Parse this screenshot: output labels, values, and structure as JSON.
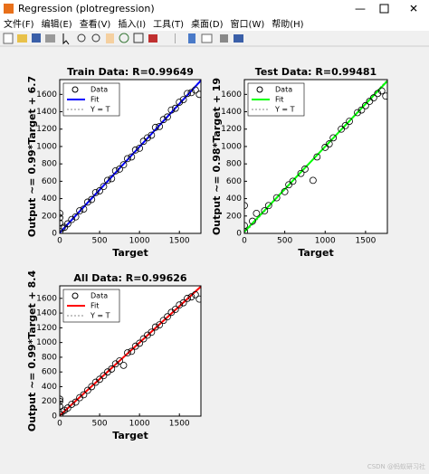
{
  "window": {
    "title": "Regression (plotregression)",
    "menu": [
      "文件(F)",
      "编辑(E)",
      "查看(V)",
      "插入(I)",
      "工具(T)",
      "桌面(D)",
      "窗口(W)",
      "帮助(H)"
    ],
    "watermark": "CSDN @蚂蚁研习社"
  },
  "chart_data": [
    {
      "type": "scatter",
      "title": "Train Data: R=0.99649",
      "xlabel": "Target",
      "ylabel": "Output ~= 0.99*Target + 6.7",
      "xlim": [
        0,
        1770
      ],
      "ylim": [
        0,
        1770
      ],
      "xticks": [
        0,
        500,
        1000,
        1500
      ],
      "yticks": [
        0,
        200,
        400,
        600,
        800,
        1000,
        1200,
        1400,
        1600
      ],
      "series": [
        {
          "name": "Data",
          "color": "#000000",
          "x": [
            0,
            0,
            0,
            0,
            30,
            60,
            100,
            150,
            200,
            250,
            300,
            350,
            400,
            450,
            500,
            550,
            600,
            650,
            700,
            750,
            800,
            850,
            900,
            950,
            1000,
            1050,
            1100,
            1150,
            1200,
            1250,
            1300,
            1350,
            1400,
            1450,
            1500,
            1550,
            1600,
            1650,
            1700,
            1750
          ],
          "values": [
            20,
            120,
            180,
            230,
            60,
            70,
            110,
            160,
            190,
            260,
            280,
            360,
            390,
            470,
            490,
            540,
            610,
            630,
            720,
            740,
            790,
            860,
            880,
            960,
            980,
            1060,
            1100,
            1130,
            1220,
            1230,
            1310,
            1340,
            1420,
            1440,
            1510,
            1540,
            1610,
            1620,
            1650,
            1600
          ]
        }
      ],
      "fit": {
        "name": "Fit",
        "color": "#0000ff",
        "slope": 0.99,
        "intercept": 6.7
      },
      "identity": {
        "name": "Y = T"
      }
    },
    {
      "type": "scatter",
      "title": "Test Data: R=0.99481",
      "xlabel": "Target",
      "ylabel": "Output ~= 0.98*Target + 19",
      "xlim": [
        0,
        1770
      ],
      "ylim": [
        0,
        1770
      ],
      "xticks": [
        0,
        500,
        1000,
        1500
      ],
      "yticks": [
        0,
        200,
        400,
        600,
        800,
        1000,
        1200,
        1400,
        1600
      ],
      "series": [
        {
          "name": "Data",
          "color": "#000000",
          "x": [
            0,
            0,
            0,
            100,
            150,
            250,
            300,
            400,
            500,
            550,
            600,
            700,
            750,
            850,
            900,
            1000,
            1050,
            1100,
            1200,
            1250,
            1300,
            1400,
            1450,
            1500,
            1550,
            1600,
            1650,
            1700,
            1750
          ],
          "values": [
            20,
            90,
            320,
            140,
            230,
            260,
            320,
            410,
            480,
            560,
            600,
            690,
            740,
            610,
            880,
            990,
            1030,
            1100,
            1200,
            1240,
            1290,
            1390,
            1420,
            1470,
            1520,
            1560,
            1610,
            1640,
            1580
          ]
        }
      ],
      "fit": {
        "name": "Fit",
        "color": "#00ff00",
        "slope": 0.98,
        "intercept": 19
      },
      "identity": {
        "name": "Y = T"
      }
    },
    {
      "type": "scatter",
      "title": "All Data: R=0.99626",
      "xlabel": "Target",
      "ylabel": "Output ~= 0.99*Target + 8.4",
      "xlim": [
        0,
        1770
      ],
      "ylim": [
        0,
        1770
      ],
      "xticks": [
        0,
        500,
        1000,
        1500
      ],
      "yticks": [
        0,
        200,
        400,
        600,
        800,
        1000,
        1200,
        1400,
        1600
      ],
      "series": [
        {
          "name": "Data",
          "color": "#000000",
          "x": [
            0,
            0,
            0,
            0,
            30,
            60,
            100,
            150,
            200,
            250,
            300,
            350,
            400,
            450,
            500,
            550,
            600,
            650,
            700,
            750,
            800,
            850,
            900,
            950,
            1000,
            1050,
            1100,
            1150,
            1200,
            1250,
            1300,
            1350,
            1400,
            1450,
            1500,
            1550,
            1600,
            1650,
            1700,
            1750
          ],
          "values": [
            20,
            130,
            200,
            230,
            60,
            80,
            110,
            160,
            190,
            250,
            290,
            350,
            400,
            460,
            500,
            550,
            600,
            640,
            710,
            750,
            690,
            860,
            880,
            950,
            990,
            1050,
            1100,
            1140,
            1210,
            1240,
            1300,
            1350,
            1410,
            1450,
            1510,
            1540,
            1600,
            1620,
            1650,
            1590
          ]
        }
      ],
      "fit": {
        "name": "Fit",
        "color": "#ff0000",
        "slope": 0.99,
        "intercept": 8.4
      },
      "identity": {
        "name": "Y = T"
      }
    }
  ]
}
